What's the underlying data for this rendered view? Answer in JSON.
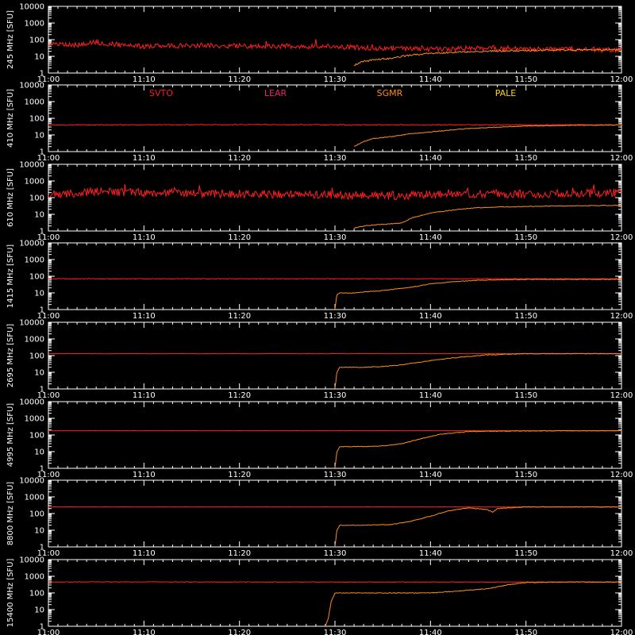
{
  "legend": [
    {
      "name": "SVTO",
      "color": "#ff1a1a"
    },
    {
      "name": "LEAR",
      "color": "#e8256f"
    },
    {
      "name": "SGMR",
      "color": "#ff8c1a"
    },
    {
      "name": "PALE",
      "color": "#ffd21a"
    }
  ],
  "colors": {
    "background": "#000000",
    "axes": "#ffffff",
    "quiet": "#ff2020",
    "flare": "#ff8c1a"
  },
  "chart_data": [
    {
      "type": "line",
      "panel": 1,
      "ylabel": "245 MHz  [SFU]",
      "xlim": [
        "11:00",
        "12:00"
      ],
      "ylim": [
        1,
        10000
      ],
      "yscale": "log",
      "xticklabels": [
        "11:00",
        "11:10",
        "11:20",
        "11:30",
        "11:40",
        "11:50",
        "12:00"
      ],
      "yticklabels": [
        "1",
        "10",
        "100",
        "1000",
        "10000"
      ],
      "series": [
        {
          "color": "#ff2020",
          "x_minutes": [
            0,
            3,
            5,
            8,
            10,
            15,
            20,
            25,
            30,
            35,
            40,
            45,
            50,
            55,
            60
          ],
          "values": [
            60,
            50,
            70,
            45,
            40,
            45,
            42,
            40,
            38,
            30,
            28,
            30,
            28,
            26,
            25
          ],
          "noise": 0.15
        },
        {
          "color": "#ff8c1a",
          "x_minutes": [
            32,
            33,
            34,
            35,
            36,
            37,
            38,
            40,
            43,
            46,
            50,
            55,
            60
          ],
          "values": [
            3,
            5,
            6,
            7,
            8,
            10,
            12,
            15,
            18,
            20,
            22,
            24,
            25
          ],
          "noise": 0.05
        }
      ]
    },
    {
      "type": "line",
      "panel": 2,
      "ylabel": "410 MHz  [SFU]",
      "xlim": [
        "11:00",
        "12:00"
      ],
      "ylim": [
        1,
        10000
      ],
      "yscale": "log",
      "xticklabels": [
        "11:00",
        "11:10",
        "11:20",
        "11:30",
        "11:40",
        "11:50",
        "12:00"
      ],
      "yticklabels": [
        "1",
        "10",
        "100",
        "1000",
        "10000"
      ],
      "series": [
        {
          "color": "#ff2020",
          "x_minutes": [
            0,
            10,
            20,
            30,
            40,
            50,
            60
          ],
          "values": [
            40,
            40,
            42,
            40,
            40,
            40,
            40
          ],
          "noise": 0.03
        },
        {
          "color": "#ff8c1a",
          "x_minutes": [
            32,
            33,
            34,
            36,
            38,
            40,
            43,
            46,
            50,
            55,
            60
          ],
          "values": [
            2,
            4,
            6,
            8,
            12,
            15,
            22,
            28,
            34,
            38,
            40
          ],
          "noise": 0.02
        }
      ]
    },
    {
      "type": "line",
      "panel": 3,
      "ylabel": "610 MHz  [SFU]",
      "xlim": [
        "11:00",
        "12:00"
      ],
      "ylim": [
        1,
        10000
      ],
      "yscale": "log",
      "xticklabels": [
        "11:00",
        "11:10",
        "11:20",
        "11:30",
        "11:40",
        "11:50",
        "12:00"
      ],
      "yticklabels": [
        "1",
        "10",
        "100",
        "1000",
        "10000"
      ],
      "series": [
        {
          "color": "#ff2020",
          "x_minutes": [
            0,
            5,
            10,
            15,
            20,
            25,
            30,
            35,
            40,
            45,
            50,
            55,
            60
          ],
          "values": [
            150,
            220,
            200,
            180,
            170,
            150,
            140,
            130,
            150,
            180,
            160,
            170,
            200
          ],
          "noise": 0.25
        },
        {
          "color": "#ff8c1a",
          "x_minutes": [
            32,
            33,
            35,
            37,
            38,
            40,
            43,
            45,
            50,
            55,
            60
          ],
          "values": [
            1.5,
            2,
            2.5,
            3,
            6,
            12,
            20,
            25,
            30,
            32,
            35
          ],
          "noise": 0.02
        }
      ]
    },
    {
      "type": "line",
      "panel": 4,
      "ylabel": "1415 MHz  [SFU]",
      "xlim": [
        "11:00",
        "12:00"
      ],
      "ylim": [
        1,
        10000
      ],
      "yscale": "log",
      "xticklabels": [
        "11:00",
        "11:10",
        "11:20",
        "11:30",
        "11:40",
        "11:50",
        "12:00"
      ],
      "yticklabels": [
        "1",
        "10",
        "100",
        "1000",
        "10000"
      ],
      "series": [
        {
          "color": "#ff2020",
          "x_minutes": [
            0,
            10,
            20,
            30,
            40,
            50,
            60
          ],
          "values": [
            70,
            70,
            70,
            70,
            70,
            70,
            70
          ],
          "noise": 0.02
        },
        {
          "color": "#ff8c1a",
          "x_minutes": [
            30,
            30.2,
            30.5,
            32,
            35,
            38,
            40,
            43,
            46,
            50,
            55,
            60
          ],
          "values": [
            1,
            8,
            10,
            10,
            14,
            22,
            35,
            50,
            60,
            65,
            65,
            65
          ],
          "noise": 0.02
        }
      ]
    },
    {
      "type": "line",
      "panel": 5,
      "ylabel": "2695 MHz  [SFU]",
      "xlim": [
        "11:00",
        "12:00"
      ],
      "ylim": [
        1,
        10000
      ],
      "yscale": "log",
      "xticklabels": [
        "11:00",
        "11:10",
        "11:20",
        "11:30",
        "11:40",
        "11:50",
        "12:00"
      ],
      "yticklabels": [
        "1",
        "10",
        "100",
        "1000",
        "10000"
      ],
      "series": [
        {
          "color": "#ff2020",
          "x_minutes": [
            0,
            10,
            20,
            30,
            40,
            50,
            60
          ],
          "values": [
            130,
            130,
            130,
            130,
            130,
            130,
            130
          ],
          "noise": 0.01
        },
        {
          "color": "#ff8c1a",
          "x_minutes": [
            30,
            30.2,
            30.5,
            33,
            35,
            37,
            40,
            43,
            46,
            50,
            55,
            60
          ],
          "values": [
            1,
            10,
            20,
            20,
            22,
            28,
            50,
            80,
            110,
            130,
            130,
            130
          ],
          "noise": 0.02
        }
      ]
    },
    {
      "type": "line",
      "panel": 6,
      "ylabel": "4995 MHz  [SFU]",
      "xlim": [
        "11:00",
        "12:00"
      ],
      "ylim": [
        1,
        10000
      ],
      "yscale": "log",
      "xticklabels": [
        "11:00",
        "11:10",
        "11:20",
        "11:30",
        "11:40",
        "11:50",
        "12:00"
      ],
      "yticklabels": [
        "1",
        "10",
        "100",
        "1000",
        "10000"
      ],
      "series": [
        {
          "color": "#ff2020",
          "x_minutes": [
            0,
            10,
            20,
            30,
            40,
            50,
            60
          ],
          "values": [
            180,
            180,
            180,
            180,
            180,
            180,
            180
          ],
          "noise": 0.01
        },
        {
          "color": "#ff8c1a",
          "x_minutes": [
            30,
            30.2,
            30.5,
            33,
            35,
            37,
            39,
            41,
            44,
            47,
            50,
            55,
            60
          ],
          "values": [
            1,
            10,
            20,
            20,
            22,
            30,
            60,
            110,
            160,
            170,
            175,
            180,
            180
          ],
          "noise": 0.02
        }
      ]
    },
    {
      "type": "line",
      "panel": 7,
      "ylabel": "8800 MHz  [SFU]",
      "xlim": [
        "11:00",
        "12:00"
      ],
      "ylim": [
        1,
        10000
      ],
      "yscale": "log",
      "xticklabels": [
        "11:00",
        "11:10",
        "11:20",
        "11:30",
        "11:40",
        "11:50",
        "12:00"
      ],
      "yticklabels": [
        "1",
        "10",
        "100",
        "1000",
        "10000"
      ],
      "series": [
        {
          "color": "#ff2020",
          "x_minutes": [
            0,
            10,
            20,
            30,
            40,
            50,
            60
          ],
          "values": [
            250,
            250,
            250,
            250,
            250,
            250,
            250
          ],
          "noise": 0.01
        },
        {
          "color": "#ff8c1a",
          "x_minutes": [
            30,
            30.2,
            30.5,
            33,
            36,
            38,
            40,
            42,
            44,
            46,
            46.5,
            47,
            50,
            55,
            60
          ],
          "values": [
            1,
            10,
            20,
            20,
            22,
            35,
            70,
            150,
            220,
            170,
            120,
            200,
            250,
            250,
            250
          ],
          "noise": 0.02
        }
      ]
    },
    {
      "type": "line",
      "panel": 8,
      "ylabel": "15400 MHz  [SFU]",
      "xlim": [
        "11:00",
        "12:00"
      ],
      "ylim": [
        1,
        10000
      ],
      "yscale": "log",
      "xticklabels": [
        "11:00",
        "11:10",
        "11:20",
        "11:30",
        "11:40",
        "11:50",
        "12:00"
      ],
      "yticklabels": [
        "1",
        "10",
        "100",
        "1000",
        "10000"
      ],
      "series": [
        {
          "color": "#ff2020",
          "x_minutes": [
            0,
            10,
            20,
            30,
            40,
            50,
            60
          ],
          "values": [
            450,
            460,
            450,
            450,
            450,
            450,
            450
          ],
          "noise": 0.02
        },
        {
          "color": "#ff8c1a",
          "x_minutes": [
            29,
            29.3,
            29.6,
            30,
            33,
            37,
            40,
            43,
            46,
            48,
            50,
            55,
            60
          ],
          "values": [
            1,
            3,
            30,
            100,
            100,
            100,
            100,
            130,
            180,
            300,
            420,
            450,
            450
          ],
          "noise": 0.02
        }
      ]
    }
  ]
}
